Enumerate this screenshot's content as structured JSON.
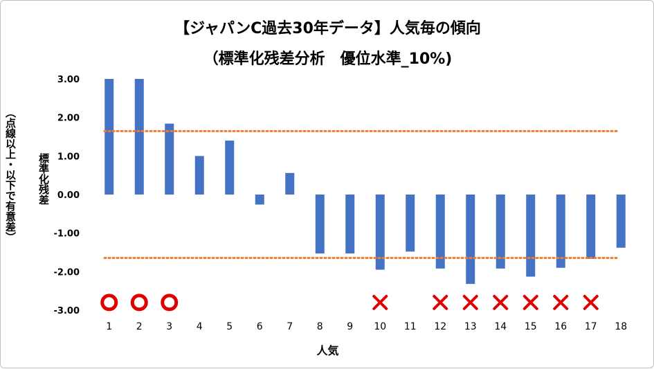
{
  "title_line1": "【ジャパンC過去30年データ】人気毎の傾向",
  "title_line2": "（標準化残差分析　優位水準_10%)",
  "ylabel_main": "標準化残差",
  "ylabel_sub": "（点線以上・以下で有意差）",
  "xlabel": "人気",
  "colors": {
    "bar": "#4472C4",
    "threshold": "#ED7D31",
    "circle": "#E00000",
    "cross": "#E00000"
  },
  "chart_data": {
    "type": "bar",
    "categories": [
      "1",
      "2",
      "3",
      "4",
      "5",
      "6",
      "7",
      "8",
      "9",
      "10",
      "11",
      "12",
      "13",
      "14",
      "15",
      "16",
      "17",
      "18"
    ],
    "values": [
      3.0,
      3.0,
      1.84,
      1.0,
      1.4,
      -0.26,
      0.56,
      -1.53,
      -1.53,
      -1.95,
      -1.48,
      -1.92,
      -2.32,
      -1.92,
      -2.13,
      -1.9,
      -1.67,
      -1.38
    ],
    "ylim": [
      -3.0,
      3.0
    ],
    "yticks": [
      "3.00",
      "2.00",
      "1.00",
      "0.00",
      "-1.00",
      "-2.00",
      "-3.00"
    ],
    "ytick_values": [
      3,
      2,
      1,
      0,
      -1,
      -2,
      -3
    ],
    "thresholds": [
      1.645,
      -1.645
    ],
    "markers": [
      {
        "category": "1",
        "symbol": "circle"
      },
      {
        "category": "2",
        "symbol": "circle"
      },
      {
        "category": "3",
        "symbol": "circle"
      },
      {
        "category": "10",
        "symbol": "cross"
      },
      {
        "category": "12",
        "symbol": "cross"
      },
      {
        "category": "13",
        "symbol": "cross"
      },
      {
        "category": "14",
        "symbol": "cross"
      },
      {
        "category": "15",
        "symbol": "cross"
      },
      {
        "category": "16",
        "symbol": "cross"
      },
      {
        "category": "17",
        "symbol": "cross"
      }
    ],
    "marker_y": -2.8
  }
}
